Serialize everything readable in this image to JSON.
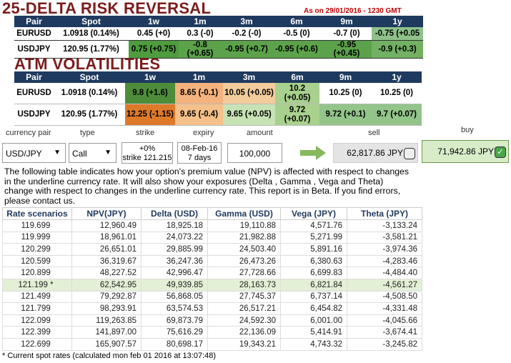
{
  "risk_reversal": {
    "title": "25-DELTA RISK REVERSAL",
    "as_of": "As on 29/01/2016 - 1230 GMT",
    "header": [
      "Pair",
      "Spot",
      "1w",
      "1m",
      "3m",
      "6m",
      "9m",
      "1y"
    ],
    "rows": [
      [
        "EURUSD",
        "1.0918 (0.14%)",
        "0.45 (+0)",
        "0.3 (-0)",
        "-0.2 (-0)",
        "-0.5 (0)",
        "-0.7 (0)",
        "-0.75 (+0.05"
      ],
      [
        "USDJPY",
        "120.95 (1.77%)",
        "0.75 (+0.75)",
        "-0.8 (+0.65)",
        "-0.95 (+0.7)",
        "-0.95 (+0.6)",
        "-0.95 (+0.45)",
        "-0.9 (+0.3)"
      ]
    ]
  },
  "atm_volatilities": {
    "title": "ATM VOLATILITIES",
    "header": [
      "Pair",
      "Spot",
      "1w",
      "1m",
      "3m",
      "6m",
      "9m",
      "1y"
    ],
    "rows": [
      [
        "EURUSD",
        "1.0918 (0.14%)",
        "9.8 (+1.6)",
        "8.65 (-0.1)",
        "10.05 (+0.05)",
        "10.2 (+0.05)",
        "10.25 (0)",
        "10.25 (0)"
      ],
      [
        "USDJPY",
        "120.95 (1.77%)",
        "12.25 (-1.15)",
        "9.65 (-0.4)",
        "9.65 (+0.05)",
        "9.72 (+0.07)",
        "9.72 (+0.1)",
        "9.7 (+0.07)"
      ]
    ]
  },
  "form": {
    "labels": [
      "currency pair",
      "type",
      "strike",
      "expiry",
      "amount",
      "sell",
      "buy"
    ],
    "currency_pair": "USD/JPY",
    "option_type": "Call",
    "strike_change": "+0%",
    "strike": "strike 121.215",
    "expiry_date": "08-Feb-16",
    "expiry_days": "7 days",
    "amount": "100,000",
    "sell": "62,817.86 JPY",
    "buy": "71,942.86 JPY"
  },
  "description": "The following table indicates how your option's premium value (NPV) is affected with respect to changes in the underline currency rate. It will also show your exposures (Delta , Gamma , Vega and Theta) change with respect to changes in the underline currency rate. This report is in Beta. If you find errors, please contact us.",
  "scenarios": {
    "header": [
      "Rate scenarios",
      "NPV(JPY)",
      "Delta (USD)",
      "Gamma (USD)",
      "Vega (JPY)",
      "Theta (JPY)"
    ],
    "rows": [
      [
        "119.699",
        "12,960.49",
        "18,925.18",
        "19,110.88",
        "4,571.76",
        "-3,133.24"
      ],
      [
        "119.999",
        "18,961.01",
        "24,073.22",
        "21,982.88",
        "5,271.99",
        "-3,581.21"
      ],
      [
        "120.299",
        "26,651.01",
        "29,885.99",
        "24,503.40",
        "5,891.16",
        "-3,974.36"
      ],
      [
        "120.599",
        "36,319.67",
        "36,247.36",
        "26,473.26",
        "6,380.63",
        "-4,283.46"
      ],
      [
        "120.899",
        "48,227.52",
        "42,996.47",
        "27,728.66",
        "6,699.83",
        "-4,484.40"
      ],
      [
        "121.199 *",
        "62,542.95",
        "49,939.85",
        "28,163.73",
        "6,821.84",
        "-4,561.27"
      ],
      [
        "121.499",
        "79,292.87",
        "56,868.05",
        "27,745.37",
        "6,737.14",
        "-4,508.50"
      ],
      [
        "121.799",
        "98,293.91",
        "63,574.53",
        "26,517.21",
        "6,454.82",
        "-4,331.48"
      ],
      [
        "122.099",
        "119,263.85",
        "69,873.79",
        "24,592.30",
        "6,001.00",
        "-4,045.66"
      ],
      [
        "122.399",
        "141,897.00",
        "75,616.29",
        "22,136.09",
        "5,414.91",
        "-3,674.41"
      ],
      [
        "122.699",
        "165,907.57",
        "80,698.17",
        "19,343.21",
        "4,743.32",
        "-3,245.82"
      ]
    ],
    "footnote": "* Current spot rates (calculated mon feb 01 2016 at 13:07:48)"
  }
}
